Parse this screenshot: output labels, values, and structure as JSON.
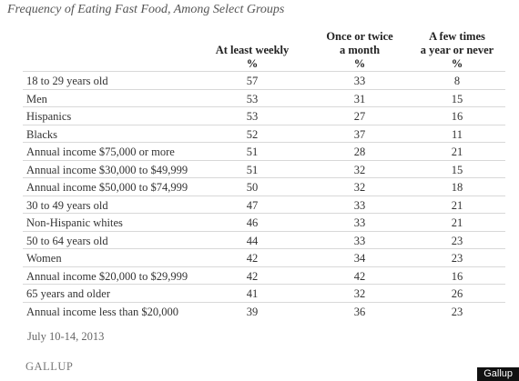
{
  "header": {
    "title": "Frequency of Eating Fast Food, Among Select Groups"
  },
  "table": {
    "columns": [
      {
        "lines": [
          "At least weekly"
        ],
        "unit": "%"
      },
      {
        "lines": [
          "Once or twice",
          "a month"
        ],
        "unit": "%"
      },
      {
        "lines": [
          "A few times",
          "a year or never"
        ],
        "unit": "%"
      }
    ],
    "rows": [
      [
        "18 to 29 years old",
        57,
        33,
        8
      ],
      [
        "Men",
        53,
        31,
        15
      ],
      [
        "Hispanics",
        53,
        27,
        16
      ],
      [
        "Blacks",
        52,
        37,
        11
      ],
      [
        "Annual income $75,000 or more",
        51,
        28,
        21
      ],
      [
        "Annual income $30,000 to $49,999",
        51,
        32,
        15
      ],
      [
        "Annual income $50,000 to $74,999",
        50,
        32,
        18
      ],
      [
        "30 to 49 years old",
        47,
        33,
        21
      ],
      [
        "Non-Hispanic whites",
        46,
        33,
        21
      ],
      [
        "50 to 64 years old",
        44,
        33,
        23
      ],
      [
        "Women",
        42,
        34,
        23
      ],
      [
        "Annual income $20,000 to $29,999",
        42,
        42,
        16
      ],
      [
        "65 years and older",
        41,
        32,
        26
      ],
      [
        "Annual income less than $20,000",
        39,
        36,
        23
      ]
    ]
  },
  "footer": {
    "date": "July 10-14, 2013",
    "source": "GALLUP",
    "watermark": "Gallup"
  }
}
